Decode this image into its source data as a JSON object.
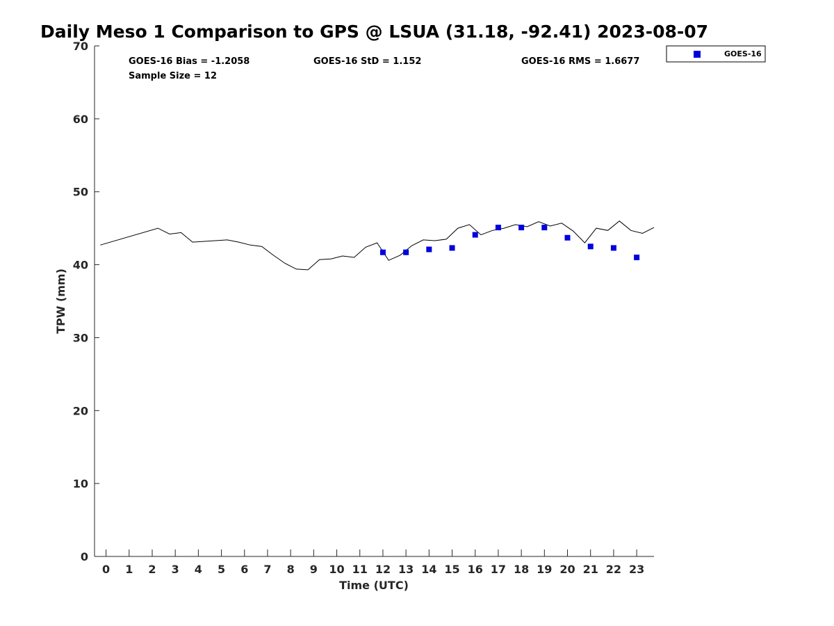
{
  "chart_data": {
    "type": "scatter",
    "title": "Daily Meso 1 Comparison to GPS @ LSUA (31.18, -92.41) 2023-08-07",
    "xlabel": "Time (UTC)",
    "ylabel": "TPW (mm)",
    "xlim": [
      -0.5,
      23.75
    ],
    "ylim": [
      0,
      70
    ],
    "xticks": [
      0,
      1,
      2,
      3,
      4,
      5,
      6,
      7,
      8,
      9,
      10,
      11,
      12,
      13,
      14,
      15,
      16,
      17,
      18,
      19,
      20,
      21,
      22,
      23
    ],
    "yticks": [
      0,
      10,
      20,
      30,
      40,
      50,
      60,
      70
    ],
    "grid": false,
    "legend_position": "top-right, outside plot",
    "stats": {
      "bias": "GOES-16 Bias = -1.2058",
      "std": "GOES-16 StD = 1.152",
      "rms": "GOES-16 RMS = 1.6677",
      "sample": "Sample Size = 12"
    },
    "series": [
      {
        "kind": "line",
        "color": "#000000",
        "points": [
          [
            -0.25,
            42.7
          ],
          [
            2.25,
            45.0
          ],
          [
            2.75,
            44.2
          ],
          [
            3.25,
            44.4
          ],
          [
            3.75,
            43.1
          ],
          [
            5.25,
            43.4
          ],
          [
            5.75,
            43.1
          ],
          [
            6.25,
            42.7
          ],
          [
            6.75,
            42.5
          ],
          [
            7.25,
            41.3
          ],
          [
            7.75,
            40.2
          ],
          [
            8.25,
            39.4
          ],
          [
            8.75,
            39.3
          ],
          [
            9.25,
            40.7
          ],
          [
            9.75,
            40.8
          ],
          [
            10.25,
            41.2
          ],
          [
            10.75,
            41.0
          ],
          [
            11.25,
            42.4
          ],
          [
            11.75,
            43.0
          ],
          [
            12.25,
            40.6
          ],
          [
            12.75,
            41.3
          ],
          [
            13.25,
            42.6
          ],
          [
            13.75,
            43.4
          ],
          [
            14.25,
            43.3
          ],
          [
            14.75,
            43.5
          ],
          [
            15.25,
            45.0
          ],
          [
            15.75,
            45.5
          ],
          [
            16.25,
            44.1
          ],
          [
            16.75,
            44.7
          ],
          [
            17.25,
            45.0
          ],
          [
            17.75,
            45.5
          ],
          [
            18.25,
            45.2
          ],
          [
            18.75,
            45.9
          ],
          [
            19.25,
            45.3
          ],
          [
            19.75,
            45.7
          ],
          [
            20.25,
            44.6
          ],
          [
            20.75,
            43.0
          ],
          [
            21.25,
            45.0
          ],
          [
            21.75,
            44.7
          ],
          [
            22.25,
            46.0
          ],
          [
            22.75,
            44.7
          ],
          [
            23.25,
            44.3
          ],
          [
            23.75,
            45.1
          ]
        ]
      },
      {
        "name": "GOES-16",
        "kind": "scatter",
        "marker": "square",
        "color": "#0000dd",
        "points": [
          [
            12,
            41.7
          ],
          [
            13,
            41.7
          ],
          [
            14,
            42.1
          ],
          [
            15,
            42.3
          ],
          [
            16,
            44.1
          ],
          [
            17,
            45.1
          ],
          [
            18,
            45.1
          ],
          [
            19,
            45.1
          ],
          [
            20,
            43.7
          ],
          [
            21,
            42.5
          ],
          [
            22,
            42.3
          ],
          [
            23,
            41.0
          ]
        ]
      }
    ]
  }
}
